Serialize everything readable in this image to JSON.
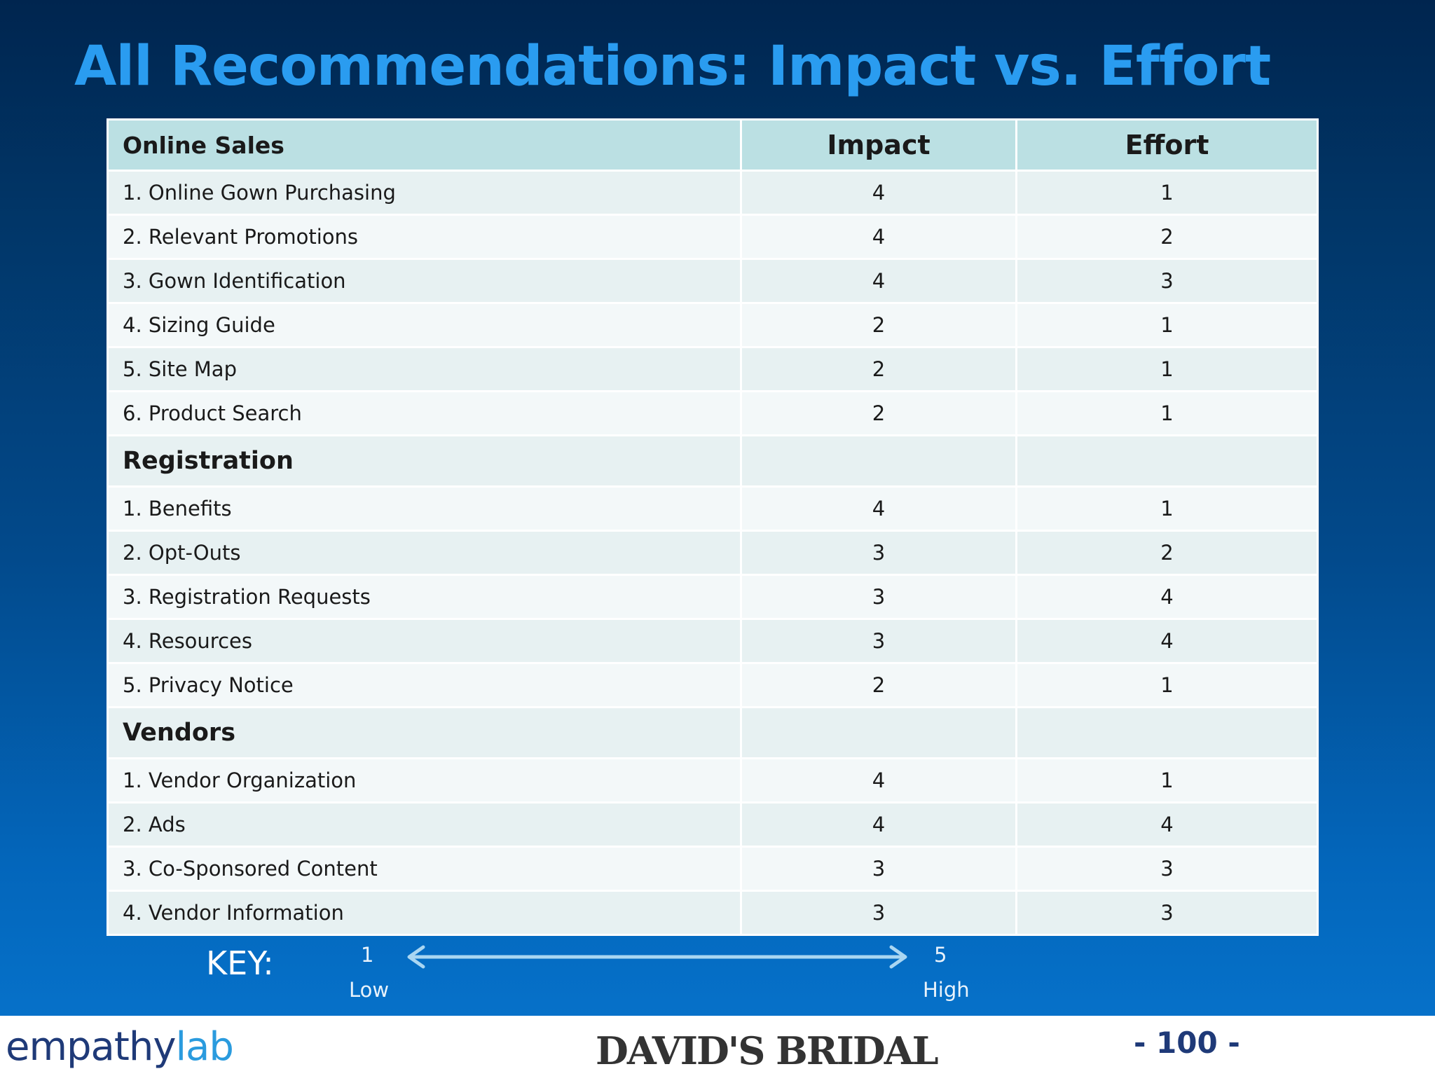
{
  "title": "All Recommendations: Impact vs. Effort",
  "table": {
    "header": {
      "section": "Online Sales",
      "impact": "Impact",
      "effort": "Effort"
    },
    "online_sales": [
      {
        "label": "1. Online Gown Purchasing",
        "impact": "4",
        "effort": "1"
      },
      {
        "label": "2. Relevant Promotions",
        "impact": "4",
        "effort": "2"
      },
      {
        "label": "3. Gown Identification",
        "impact": "4",
        "effort": "3"
      },
      {
        "label": "4. Sizing Guide",
        "impact": "2",
        "effort": "1"
      },
      {
        "label": "5. Site Map",
        "impact": "2",
        "effort": "1"
      },
      {
        "label": "6. Product Search",
        "impact": "2",
        "effort": "1"
      }
    ],
    "registration_title": "Registration",
    "registration": [
      {
        "label": "1. Benefits",
        "impact": "4",
        "effort": "1"
      },
      {
        "label": "2. Opt-Outs",
        "impact": "3",
        "effort": "2"
      },
      {
        "label": "3. Registration Requests",
        "impact": "3",
        "effort": "4"
      },
      {
        "label": "4. Resources",
        "impact": "3",
        "effort": "4"
      },
      {
        "label": "5. Privacy Notice",
        "impact": "2",
        "effort": "1"
      }
    ],
    "vendors_title": "Vendors",
    "vendors": [
      {
        "label": "1. Vendor Organization",
        "impact": "4",
        "effort": "1"
      },
      {
        "label": "2. Ads",
        "impact": "4",
        "effort": "4"
      },
      {
        "label": "3. Co-Sponsored Content",
        "impact": "3",
        "effort": "3"
      },
      {
        "label": "4. Vendor Information",
        "impact": "3",
        "effort": "3"
      }
    ]
  },
  "key": {
    "label": "KEY:",
    "low_value": "1",
    "low_label": "Low",
    "high_value": "5",
    "high_label": "High"
  },
  "footer": {
    "logo_left_part1": "empathy",
    "logo_left_part2": "lab",
    "logo_center": "DAVID'S BRIDAL",
    "page_number": "- 100 -"
  },
  "colors": {
    "title": "#2a9cf0",
    "header_fill": "#bbe0e3",
    "row_fill_a": "#e7f1f2",
    "row_fill_b": "#f3f8f9",
    "arrow": "#a9d6f2"
  }
}
